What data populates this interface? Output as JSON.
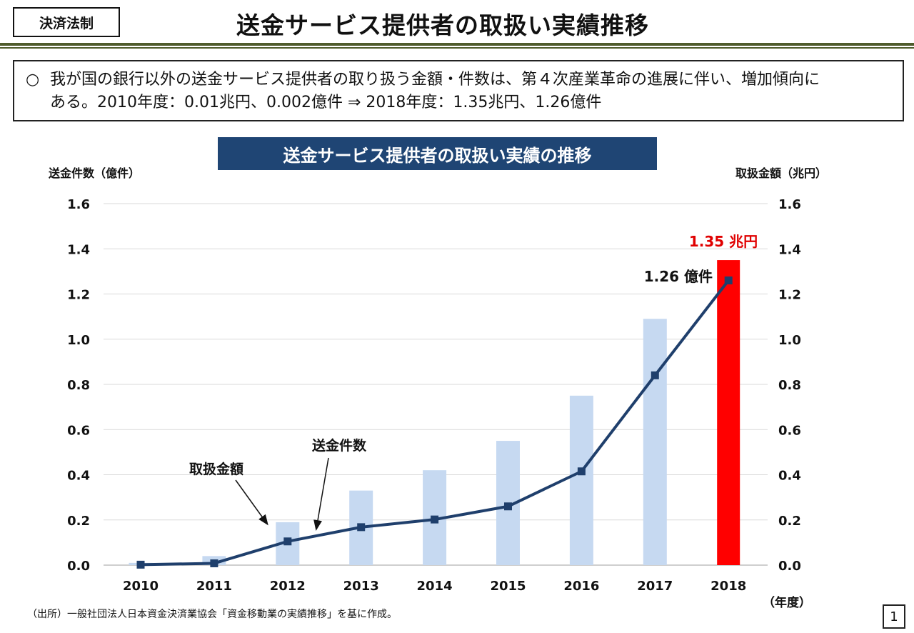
{
  "header": {
    "tag": "決済法制",
    "title": "送金サービス提供者の取扱い実績推移"
  },
  "summary": {
    "bullet": "○",
    "line1": "我が国の銀行以外の送金サービス提供者の取り扱う金額・件数は、第４次産業革命の進展に伴い、増加傾向に",
    "line2": "ある。2010年度：0.01兆円、0.002億件 ⇒ 2018年度：1.35兆円、1.26億件"
  },
  "footer": {
    "source": "（出所）一般社団法人日本資金決済業協会「資金移動業の実績推移」を基に作成。",
    "page": "1"
  },
  "chart_data": {
    "type": "bar+line",
    "title": "送金サービス提供者の取扱い実績の推移",
    "categories": [
      "2010",
      "2011",
      "2012",
      "2013",
      "2014",
      "2015",
      "2016",
      "2017",
      "2018"
    ],
    "xlabel": "（年度）",
    "ylabel_left": "送金件数（億件）",
    "ylabel_right": "取扱金額（兆円）",
    "ylim": [
      0,
      1.6
    ],
    "yticks": [
      "0.0",
      "0.2",
      "0.4",
      "0.6",
      "0.8",
      "1.0",
      "1.2",
      "1.4",
      "1.6"
    ],
    "grid": true,
    "series": [
      {
        "name": "取扱金額",
        "kind": "bar",
        "axis": "right",
        "values": [
          0.01,
          0.04,
          0.19,
          0.33,
          0.42,
          0.55,
          0.75,
          1.09,
          1.35
        ],
        "color": "#c6d9f1",
        "highlight_color": "#ff0000"
      },
      {
        "name": "送金件数",
        "kind": "line",
        "axis": "left",
        "values": [
          0.002,
          0.008,
          0.105,
          0.168,
          0.202,
          0.26,
          0.415,
          0.84,
          1.26
        ],
        "color": "#1f3f6c"
      }
    ],
    "annotations": {
      "bar_label": "1.35 兆円",
      "line_label": "1.26 億件"
    }
  }
}
